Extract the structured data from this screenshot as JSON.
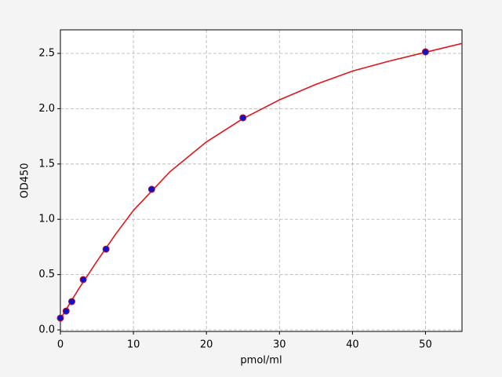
{
  "chart_data": {
    "type": "scatter",
    "xlabel": "pmol/ml",
    "ylabel": "OD450",
    "xlim": [
      0,
      55
    ],
    "ylim": [
      -0.014,
      2.713
    ],
    "xticks": [
      0,
      10,
      20,
      30,
      40,
      50
    ],
    "yticks": [
      {
        "value": 0,
        "label": "0.0"
      },
      0.5,
      {
        "value": 1,
        "label": "1.0"
      },
      1.5,
      {
        "value": 2,
        "label": "2.0"
      },
      2.5
    ],
    "grid": true,
    "series": [
      {
        "style": "line",
        "color": "#e0161b",
        "x": [
          0,
          2.5,
          5,
          7.5,
          10,
          15,
          20,
          25,
          30,
          35,
          40,
          45,
          50,
          55
        ],
        "values": [
          0.1,
          0.37,
          0.62,
          0.86,
          1.08,
          1.43,
          1.7,
          1.91,
          2.08,
          2.22,
          2.34,
          2.43,
          2.51,
          2.59
        ]
      },
      {
        "style": "markers",
        "color": "#1010d0",
        "edgecolor": "#c0101a",
        "x": [
          0,
          0.78,
          1.56,
          3.125,
          6.25,
          12.5,
          25,
          50
        ],
        "values": [
          0.107,
          0.17,
          0.256,
          0.455,
          0.73,
          1.271,
          1.918,
          2.514
        ]
      }
    ]
  }
}
